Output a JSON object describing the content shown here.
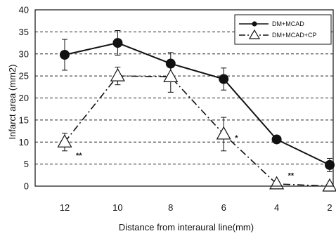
{
  "chart_data": {
    "type": "line",
    "xlabel": "Distance from interaural line(mm)",
    "ylabel": "Infarct area (mm2)",
    "categories": [
      "12",
      "10",
      "8",
      "6",
      "4",
      "2"
    ],
    "ylim": [
      0,
      40
    ],
    "yticks": [
      0,
      5,
      10,
      15,
      20,
      25,
      30,
      35,
      40
    ],
    "grid": "horizontal dashed",
    "legend_position": "top-right",
    "series": [
      {
        "name": "DM+MCAD",
        "marker": "filled-circle",
        "line_style": "solid",
        "color": "#111111",
        "values": [
          29.8,
          32.5,
          27.8,
          24.3,
          10.6,
          4.8
        ],
        "errors": [
          3.5,
          2.8,
          2.5,
          2.5,
          0.3,
          1.5
        ]
      },
      {
        "name": "DM+MCAD+CP",
        "marker": "open-triangle",
        "line_style": "dash-dot",
        "color": "#111111",
        "values": [
          10.0,
          25.0,
          24.8,
          11.8,
          0.5,
          0.0
        ],
        "errors": [
          2.0,
          2.0,
          3.5,
          3.8,
          0.3,
          0.2
        ]
      }
    ],
    "annotations": [
      {
        "text": "**",
        "category": "12",
        "y": 7.0
      },
      {
        "text": "*",
        "category": "6",
        "y": 11.0
      },
      {
        "text": "**",
        "category": "4",
        "y": 2.5
      },
      {
        "text": "*",
        "category": "2",
        "y": 1.0
      }
    ]
  }
}
